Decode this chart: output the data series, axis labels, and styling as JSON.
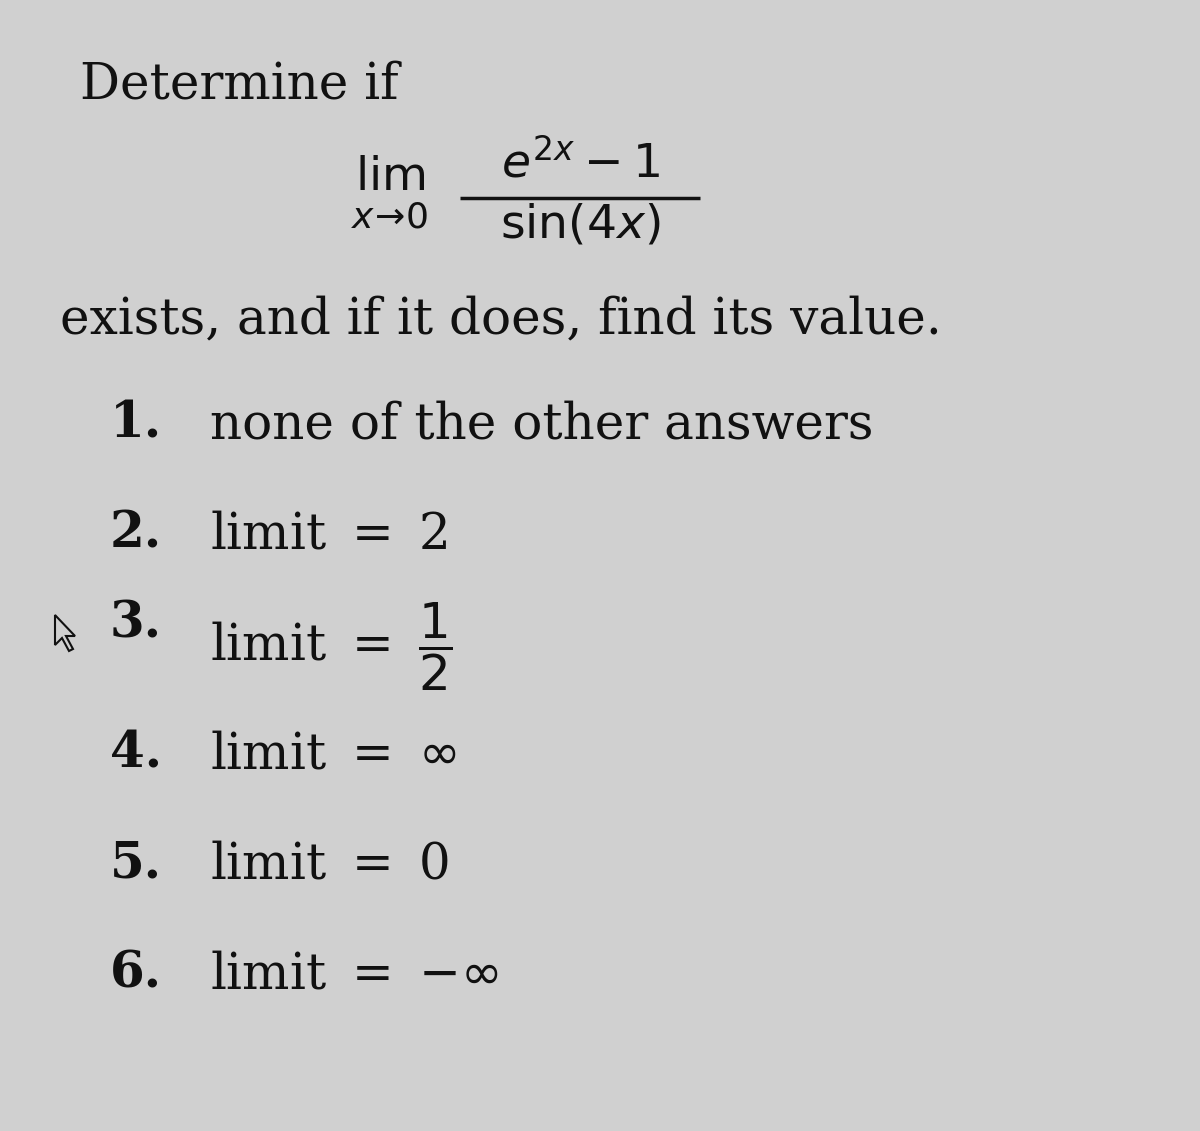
{
  "background_color": "#d0d0d0",
  "text_color": "#111111",
  "figsize": [
    12.0,
    11.31
  ],
  "dpi": 100,
  "title": "Determine if",
  "subtitle": "exists, and if it does, find its value.",
  "lim_label": "lim",
  "lim_subscript": "$x \\to 0$",
  "numerator": "$e^{2x} - 1$",
  "denominator": "$\\sin(4x)$",
  "options": [
    {
      "num": "1.",
      "text": "none of the other answers",
      "is_bold_text": false
    },
    {
      "num": "2.",
      "text": "limit $=$ 2",
      "is_bold_text": false
    },
    {
      "num": "3.",
      "text": "limit $=$ $\\dfrac{1}{2}$",
      "is_bold_text": false
    },
    {
      "num": "4.",
      "text": "limit $=$ $\\infty$",
      "is_bold_text": false
    },
    {
      "num": "5.",
      "text": "limit $=$ 0",
      "is_bold_text": false
    },
    {
      "num": "6.",
      "text": "limit $=$ $-\\infty$",
      "is_bold_text": false
    }
  ]
}
